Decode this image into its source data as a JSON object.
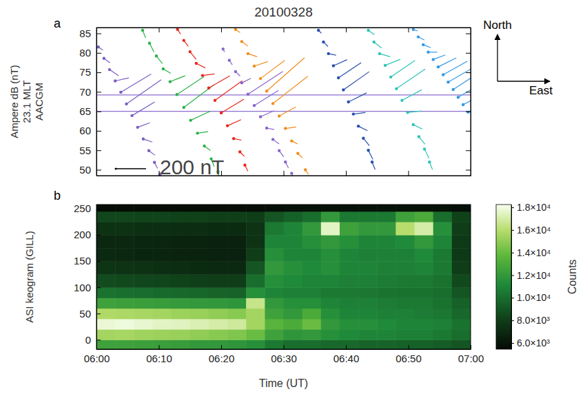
{
  "chart_data": [
    {
      "type": "vector",
      "panel": "a",
      "title": "20100328",
      "y_label": [
        "Ampere dB (nT)",
        "23.1 MLT",
        "AACGM"
      ],
      "xlim": [
        0,
        60
      ],
      "xticks": [
        0,
        10,
        20,
        30,
        40,
        50,
        60
      ],
      "ylim": [
        48.5,
        86.5
      ],
      "yticks": [
        50,
        55,
        60,
        65,
        70,
        75,
        80,
        85
      ],
      "tick_labels": "y",
      "reference_lines": [
        65,
        69.2
      ],
      "scale_bar": {
        "value": 200,
        "label": "200 nT"
      },
      "annotations": [
        "North",
        "East"
      ],
      "series": [
        {
          "color": "#7b5cc4",
          "x": [
            0.3,
            1.2,
            2.1,
            3.0,
            3.9,
            4.8,
            5.7,
            6.6,
            7.5,
            8.4,
            9.3,
            10.2
          ],
          "values": [
            81.5,
            78.6,
            75.7,
            72.8,
            69.9,
            66.9,
            63.9,
            60.9,
            57.9,
            54.9,
            51.9,
            48.9
          ],
          "dB_north": [
            -20,
            -30,
            -40,
            20,
            120,
            160,
            90,
            30,
            -20,
            -30,
            -40,
            -30
          ],
          "dB_east": [
            30,
            40,
            60,
            90,
            200,
            230,
            150,
            80,
            60,
            40,
            20,
            10
          ]
        },
        {
          "color": "#2bb34a",
          "x": [
            7.4,
            8.5,
            9.6,
            10.7,
            11.8,
            12.9,
            14.0,
            15.1,
            16.2,
            17.3,
            18.4,
            19.5
          ],
          "values": [
            85.8,
            82.5,
            79.2,
            75.9,
            72.6,
            69.3,
            66.0,
            62.7,
            59.4,
            56.1,
            52.8,
            49.5
          ],
          "dB_north": [
            -50,
            -60,
            -50,
            -30,
            40,
            120,
            150,
            60,
            10,
            -30,
            -50,
            -60
          ],
          "dB_east": [
            20,
            30,
            40,
            50,
            100,
            180,
            200,
            130,
            70,
            40,
            20,
            10
          ]
        },
        {
          "color": "#e8281e",
          "x": [
            13.0,
            14.0,
            15.0,
            16.0,
            17.0,
            18.0,
            19.0,
            20.0,
            21.0,
            22.0,
            23.0,
            23.8
          ],
          "values": [
            86.0,
            83.2,
            80.3,
            77.3,
            74.2,
            71.0,
            67.8,
            64.6,
            61.3,
            58.0,
            54.6,
            51.2
          ],
          "dB_north": [
            -30,
            -40,
            -50,
            -30,
            10,
            80,
            130,
            90,
            40,
            -10,
            -30,
            -40
          ],
          "dB_east": [
            20,
            30,
            40,
            60,
            80,
            140,
            180,
            150,
            90,
            50,
            30,
            20
          ]
        },
        {
          "color": "#8866cc",
          "x": [
            20.3,
            21.3,
            22.3,
            23.3,
            24.3,
            25.3,
            26.3,
            27.3,
            28.3,
            29.3,
            30.3,
            31.3
          ],
          "values": [
            81.0,
            78.1,
            75.2,
            72.3,
            69.4,
            66.5,
            63.6,
            60.7,
            57.8,
            54.9,
            52.0,
            49.1
          ],
          "dB_north": [
            -20,
            -30,
            -30,
            30,
            150,
            100,
            40,
            -10,
            -30,
            -40,
            -40,
            -30
          ],
          "dB_east": [
            10,
            20,
            30,
            60,
            230,
            160,
            90,
            50,
            40,
            30,
            20,
            10
          ]
        },
        {
          "color": "#f28c1c",
          "x": [
            22.3,
            23.3,
            24.3,
            25.3,
            26.3,
            27.3,
            28.3,
            29.3,
            30.3,
            31.3,
            32.3,
            33.5
          ],
          "values": [
            86.0,
            82.9,
            79.8,
            76.6,
            73.4,
            70.2,
            67.0,
            63.8,
            60.6,
            57.4,
            54.2,
            50.0
          ],
          "dB_north": [
            -20,
            -30,
            -20,
            30,
            120,
            220,
            180,
            60,
            10,
            -20,
            -30,
            -30
          ],
          "dB_east": [
            30,
            40,
            60,
            90,
            160,
            250,
            230,
            110,
            70,
            40,
            30,
            20
          ]
        },
        {
          "color": "#2a4fb0",
          "x": [
            35.6,
            36.4,
            37.2,
            38.0,
            38.8,
            39.6,
            40.4,
            41.2,
            42.0,
            42.8,
            43.6,
            44.2
          ],
          "values": [
            85.8,
            82.8,
            79.8,
            76.7,
            73.6,
            70.5,
            67.4,
            64.3,
            61.2,
            58.1,
            55.0,
            52.0
          ],
          "dB_north": [
            -20,
            -30,
            -10,
            40,
            100,
            120,
            60,
            10,
            -30,
            -50,
            -60,
            -50
          ],
          "dB_east": [
            20,
            30,
            50,
            90,
            150,
            170,
            120,
            80,
            60,
            40,
            30,
            20
          ]
        },
        {
          "color": "#2ec4b6",
          "x": [
            43.6,
            44.5,
            45.4,
            46.3,
            47.2,
            48.1,
            49.0,
            49.9,
            50.8,
            51.7,
            52.6,
            53.4
          ],
          "values": [
            85.8,
            82.8,
            79.8,
            76.8,
            73.8,
            70.8,
            67.8,
            64.7,
            61.6,
            58.5,
            55.3,
            52.0
          ],
          "dB_north": [
            -30,
            -40,
            -20,
            40,
            110,
            130,
            70,
            10,
            -30,
            -50,
            -60,
            -50
          ],
          "dB_east": [
            40,
            50,
            70,
            100,
            160,
            190,
            130,
            90,
            60,
            40,
            30,
            20
          ]
        },
        {
          "color": "#3399e6",
          "x": [
            50.8,
            51.6,
            52.4,
            53.2,
            54.0,
            54.8,
            55.6,
            56.4,
            57.2,
            58.0,
            58.8,
            59.6
          ],
          "values": [
            86.0,
            84.1,
            82.1,
            80.2,
            78.3,
            76.4,
            74.4,
            72.5,
            70.6,
            68.6,
            66.7,
            64.8
          ],
          "dB_north": [
            -10,
            -20,
            -20,
            0,
            30,
            60,
            90,
            110,
            130,
            120,
            90,
            60
          ],
          "dB_east": [
            30,
            40,
            50,
            60,
            80,
            120,
            160,
            190,
            200,
            200,
            170,
            150
          ]
        }
      ]
    },
    {
      "type": "heatmap",
      "panel": "b",
      "x_label": "Time (UT)",
      "y_label": "ASI keogram (GILL)",
      "z_label": "Counts",
      "xlim": [
        0,
        60
      ],
      "xticks": [
        {
          "value": 0,
          "label": "06:00"
        },
        {
          "value": 10,
          "label": "06:10"
        },
        {
          "value": 20,
          "label": "06:20"
        },
        {
          "value": 30,
          "label": "06:30"
        },
        {
          "value": 40,
          "label": "06:40"
        },
        {
          "value": 50,
          "label": "06:50"
        },
        {
          "value": 60,
          "label": "07:00"
        }
      ],
      "ylim": [
        -18,
        258
      ],
      "yticks": [
        0,
        50,
        100,
        150,
        200,
        250
      ],
      "zlim": [
        5450,
        18250
      ],
      "zticks": [
        {
          "value": 6000,
          "label": "6.0×10³"
        },
        {
          "value": 8000,
          "label": "8.0×10³"
        },
        {
          "value": 10000,
          "label": "1.0×10⁴"
        },
        {
          "value": 12000,
          "label": "1.2×10⁴"
        },
        {
          "value": 14000,
          "label": "1.4×10⁴"
        },
        {
          "value": 16000,
          "label": "1.6×10⁴"
        },
        {
          "value": 18000,
          "label": "1.8×10⁴"
        }
      ],
      "x_edges": [
        0,
        3,
        6,
        9,
        12,
        15,
        18,
        21,
        24,
        27,
        30,
        33,
        36,
        39,
        42,
        45,
        48,
        51,
        54,
        57,
        60
      ],
      "y_edges": [
        -18,
        0,
        20,
        40,
        60,
        80,
        100,
        125,
        150,
        175,
        200,
        225,
        245,
        258
      ],
      "cells": [
        [
          12500,
          12500,
          12400,
          12300,
          12200,
          12000,
          12000,
          11800,
          11500,
          10500,
          10000,
          10000,
          9800,
          9800,
          9600,
          9600,
          9500,
          9500,
          9300,
          9000
        ],
        [
          15500,
          15600,
          15400,
          15300,
          15200,
          15000,
          14800,
          14600,
          14000,
          12500,
          11800,
          12000,
          11500,
          11200,
          11000,
          11000,
          10800,
          10800,
          10500,
          10000
        ],
        [
          17800,
          17900,
          17700,
          17500,
          17400,
          17200,
          17000,
          16800,
          15500,
          13500,
          13000,
          14000,
          12000,
          11500,
          11500,
          11200,
          11000,
          11000,
          10800,
          10200
        ],
        [
          15800,
          15700,
          15600,
          15500,
          15300,
          15200,
          15000,
          14800,
          15500,
          12500,
          12000,
          13000,
          11500,
          11000,
          11000,
          10800,
          10800,
          10600,
          10400,
          9800
        ],
        [
          12500,
          12400,
          12300,
          12200,
          12100,
          12000,
          12000,
          11800,
          16500,
          12000,
          11500,
          11500,
          11000,
          10800,
          10800,
          10600,
          10500,
          10500,
          10200,
          9500
        ],
        [
          10200,
          10100,
          10000,
          9900,
          9800,
          9700,
          9600,
          9500,
          11500,
          11000,
          10800,
          10800,
          10500,
          10500,
          10400,
          10300,
          10200,
          10200,
          10000,
          9000
        ],
        [
          8600,
          8500,
          8400,
          8300,
          8200,
          8100,
          8000,
          8000,
          10000,
          11500,
          11200,
          11000,
          11000,
          10800,
          10800,
          10600,
          10500,
          10500,
          10200,
          8500
        ],
        [
          7600,
          7500,
          7400,
          7300,
          7200,
          7100,
          7000,
          7000,
          9000,
          12000,
          11500,
          11200,
          11500,
          11000,
          11000,
          10800,
          10800,
          11000,
          10500,
          8000
        ],
        [
          7000,
          6900,
          6800,
          6800,
          6700,
          6700,
          6600,
          6600,
          8000,
          11500,
          11000,
          11000,
          11500,
          11000,
          10800,
          10800,
          10800,
          11200,
          10500,
          7800
        ],
        [
          6900,
          6900,
          6800,
          6800,
          6700,
          6700,
          6600,
          6600,
          7500,
          11000,
          11000,
          11500,
          12000,
          11500,
          11000,
          11000,
          11200,
          12000,
          11000,
          7800
        ],
        [
          7400,
          7400,
          7300,
          7300,
          7200,
          7200,
          7100,
          7100,
          7500,
          10500,
          11000,
          12000,
          17500,
          12500,
          12000,
          12000,
          16000,
          17000,
          11500,
          8000
        ],
        [
          8400,
          8400,
          8300,
          8300,
          8200,
          8200,
          8100,
          8100,
          8000,
          9000,
          9500,
          10000,
          12000,
          10500,
          10500,
          10500,
          12500,
          13000,
          10000,
          8200
        ],
        [
          5600,
          5600,
          5600,
          5600,
          5600,
          5600,
          5600,
          5600,
          5600,
          5700,
          5800,
          5800,
          5800,
          5800,
          5800,
          5800,
          5800,
          5800,
          5800,
          5700
        ]
      ]
    }
  ]
}
